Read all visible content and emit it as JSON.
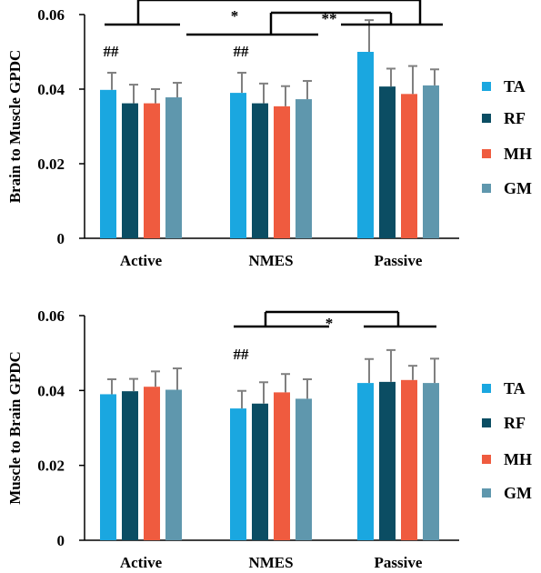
{
  "colors": {
    "TA": "#1aa7e0",
    "RF": "#0b4d63",
    "MH": "#ef5b3f",
    "GM": "#5f97ad",
    "error": "#808080",
    "axis": "#000000"
  },
  "chart_data": [
    {
      "type": "bar",
      "ylabel": "Brain to Muscle GPDC",
      "ylim": [
        0,
        0.06
      ],
      "yticks": [
        "0",
        "0.02",
        "0.04",
        "0.06"
      ],
      "ytick_values": [
        0,
        0.02,
        0.04,
        0.06
      ],
      "categories": [
        "Active",
        "NMES",
        "Passive"
      ],
      "series": [
        {
          "name": "TA",
          "values": [
            0.0398,
            0.039,
            0.05
          ],
          "errors": [
            0.0046,
            0.0054,
            0.0085
          ]
        },
        {
          "name": "RF",
          "values": [
            0.0362,
            0.0362,
            0.0407
          ],
          "errors": [
            0.005,
            0.0053,
            0.0048
          ]
        },
        {
          "name": "MH",
          "values": [
            0.0362,
            0.0354,
            0.0387
          ],
          "errors": [
            0.0038,
            0.0054,
            0.0075
          ]
        },
        {
          "name": "GM",
          "values": [
            0.0378,
            0.0373,
            0.041
          ],
          "errors": [
            0.0039,
            0.0049,
            0.0043
          ]
        }
      ],
      "legend": [
        "TA",
        "RF",
        "MH",
        "GM"
      ],
      "legend_position": "right",
      "annotations": [
        {
          "text": "##",
          "category": 0
        },
        {
          "text": "##",
          "category": 1
        }
      ],
      "significance": [
        {
          "text": "*",
          "between": [
            "Active",
            "NMES"
          ]
        },
        {
          "text": "**",
          "between": [
            "NMES",
            "Passive"
          ]
        },
        {
          "text": "",
          "between": [
            "Active",
            "Passive"
          ]
        }
      ]
    },
    {
      "type": "bar",
      "ylabel": "Muscle to Brain GPDC",
      "ylim": [
        0,
        0.06
      ],
      "yticks": [
        "0",
        "0.02",
        "0.04",
        "0.06"
      ],
      "ytick_values": [
        0,
        0.02,
        0.04,
        0.06
      ],
      "categories": [
        "Active",
        "NMES",
        "Passive"
      ],
      "series": [
        {
          "name": "TA",
          "values": [
            0.039,
            0.0352,
            0.042
          ],
          "errors": [
            0.004,
            0.0047,
            0.0064
          ]
        },
        {
          "name": "RF",
          "values": [
            0.0398,
            0.0365,
            0.0423
          ],
          "errors": [
            0.0033,
            0.0057,
            0.0085
          ]
        },
        {
          "name": "MH",
          "values": [
            0.041,
            0.0395,
            0.0428
          ],
          "errors": [
            0.0041,
            0.0049,
            0.0038
          ]
        },
        {
          "name": "GM",
          "values": [
            0.0402,
            0.0378,
            0.042
          ],
          "errors": [
            0.0057,
            0.0052,
            0.0065
          ]
        }
      ],
      "legend": [
        "TA",
        "RF",
        "MH",
        "GM"
      ],
      "legend_position": "right",
      "annotations": [
        {
          "text": "##",
          "category": 1
        }
      ],
      "significance": [
        {
          "text": "*",
          "between": [
            "NMES",
            "Passive"
          ]
        }
      ]
    }
  ]
}
